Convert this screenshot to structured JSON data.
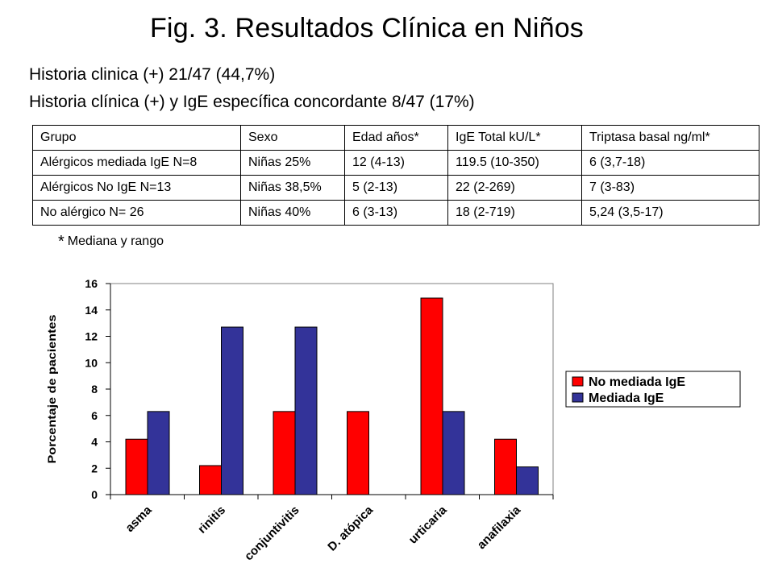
{
  "title": "Fig. 3. Resultados Clínica en Niños",
  "info_lines": [
    "Historia clinica (+) 21/47 (44,7%)",
    "Historia clínica (+) y IgE específica concordante 8/47 (17%)"
  ],
  "table": {
    "headers": [
      "Grupo",
      "Sexo",
      "Edad años*",
      "IgE Total  kU/L*",
      "Triptasa basal ng/ml*"
    ],
    "rows": [
      [
        "Alérgicos mediada IgE   N=8",
        "Niñas 25%",
        "12 (4-13)",
        "119.5 (10-350)",
        "6  (3,7-18)"
      ],
      [
        "Alérgicos  No IgE N=13",
        "Niñas 38,5%",
        "5 (2-13)",
        "22 (2-269)",
        "7 (3-83)"
      ],
      [
        "No alérgico N= 26",
        "Niñas  40%",
        "6 (3-13)",
        "18 (2-719)",
        "5,24 (3,5-17)"
      ]
    ]
  },
  "footnote": {
    "star": "*",
    "text": "Mediana y rango"
  },
  "chart_data": {
    "type": "bar",
    "title": "",
    "xlabel": "",
    "ylabel": "Porcentaje de pacientes",
    "ylim": [
      0,
      16
    ],
    "yticks": [
      0,
      2,
      4,
      6,
      8,
      10,
      12,
      14,
      16
    ],
    "grid": false,
    "legend_position": "right",
    "categories": [
      "asma",
      "rinitis",
      "conjuntivitis",
      "D. atópica",
      "urticaria",
      "anafilaxia"
    ],
    "series": [
      {
        "name": "No mediada IgE",
        "color": "#ff0000",
        "values": [
          4.2,
          2.2,
          6.3,
          6.3,
          14.9,
          4.2
        ]
      },
      {
        "name": "Mediada IgE",
        "color": "#333399",
        "values": [
          6.3,
          12.7,
          12.7,
          0,
          6.3,
          2.1
        ]
      }
    ]
  }
}
